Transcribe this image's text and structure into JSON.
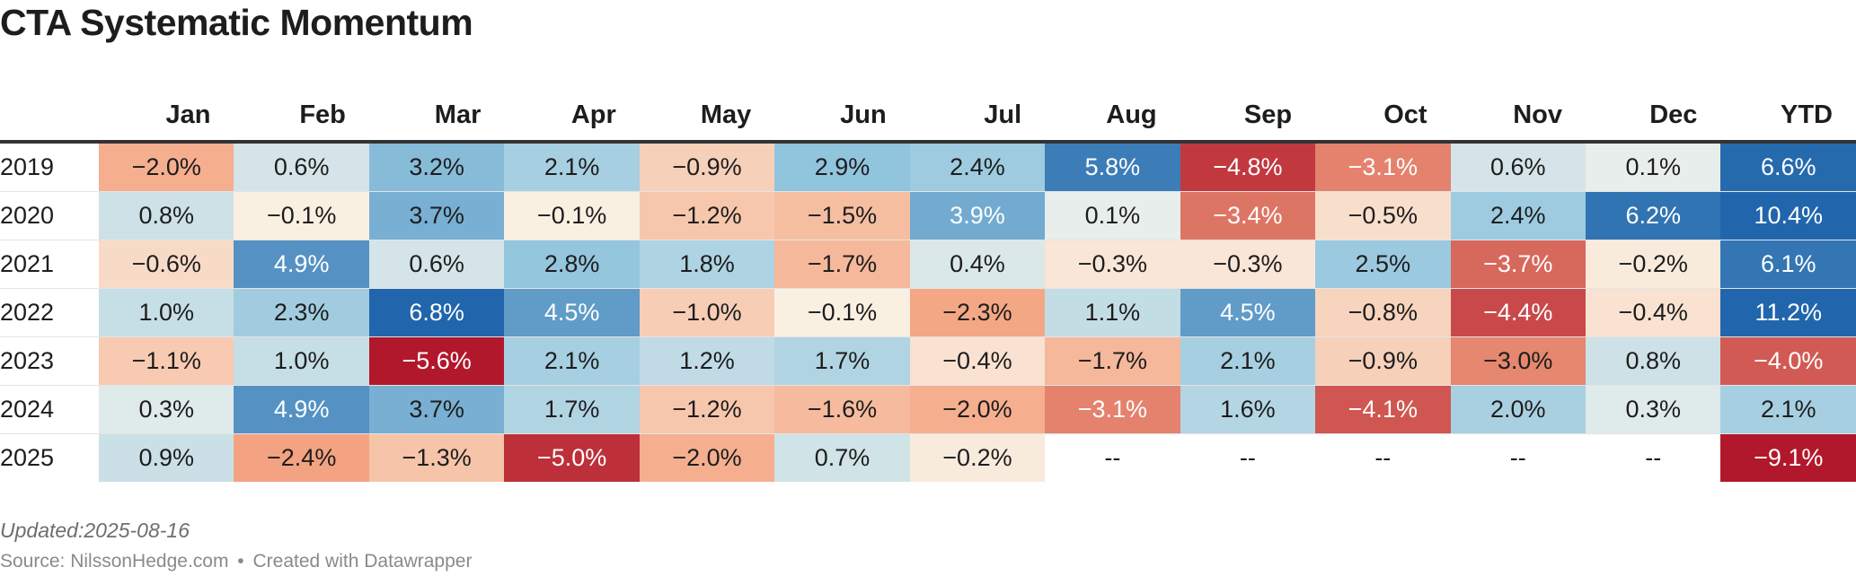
{
  "title": "CTA Systematic Momentum",
  "footer": {
    "updated": "Updated:2025-08-16",
    "source": "Source: NilssonHedge.com",
    "separator": "•",
    "credit": "Created with Datawrapper"
  },
  "chart_data": {
    "type": "heatmap",
    "title": "CTA Systematic Momentum",
    "columns": [
      "Jan",
      "Feb",
      "Mar",
      "Apr",
      "May",
      "Jun",
      "Jul",
      "Aug",
      "Sep",
      "Oct",
      "Nov",
      "Dec",
      "YTD"
    ],
    "rows": [
      {
        "year": "2019",
        "values": [
          -2.0,
          0.6,
          3.2,
          2.1,
          -0.9,
          2.9,
          2.4,
          5.8,
          -4.8,
          -3.1,
          0.6,
          0.1,
          6.6
        ]
      },
      {
        "year": "2020",
        "values": [
          0.8,
          -0.1,
          3.7,
          -0.1,
          -1.2,
          -1.5,
          3.9,
          0.1,
          -3.4,
          -0.5,
          2.4,
          6.2,
          10.4
        ]
      },
      {
        "year": "2021",
        "values": [
          -0.6,
          4.9,
          0.6,
          2.8,
          1.8,
          -1.7,
          0.4,
          -0.3,
          -0.3,
          2.5,
          -3.7,
          -0.2,
          6.1
        ]
      },
      {
        "year": "2022",
        "values": [
          1.0,
          2.3,
          6.8,
          4.5,
          -1.0,
          -0.1,
          -2.3,
          1.1,
          4.5,
          -0.8,
          -4.4,
          -0.4,
          11.2
        ]
      },
      {
        "year": "2023",
        "values": [
          -1.1,
          1.0,
          -5.6,
          2.1,
          1.2,
          1.7,
          -0.4,
          -1.7,
          2.1,
          -0.9,
          -3.0,
          0.8,
          -4.0
        ]
      },
      {
        "year": "2024",
        "values": [
          0.3,
          4.9,
          3.7,
          1.7,
          -1.2,
          -1.6,
          -2.0,
          -3.1,
          1.6,
          -4.1,
          2.0,
          0.3,
          2.1
        ]
      },
      {
        "year": "2025",
        "values": [
          0.9,
          -2.4,
          -1.3,
          -5.0,
          -2.0,
          0.7,
          -0.2,
          null,
          null,
          null,
          null,
          null,
          -9.1
        ]
      }
    ],
    "value_format": "percent_1dp",
    "missing_label": "--",
    "color_scale": {
      "type": "diverging",
      "min": -5.6,
      "max": 6.8,
      "negative_color": "#b2182b",
      "positive_color": "#2166ac",
      "neutral_light_negative": "#faf6ea",
      "neutral_light_positive": "#eef1ec"
    },
    "grid": false,
    "legend": "none"
  }
}
